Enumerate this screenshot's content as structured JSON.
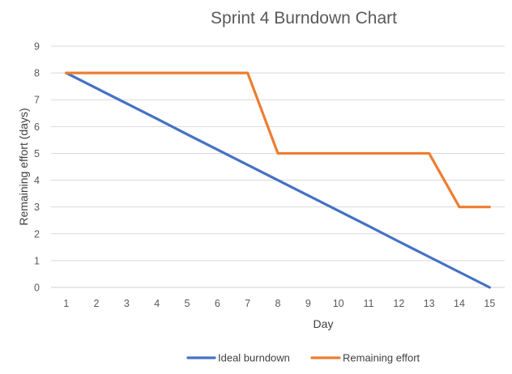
{
  "chart_data": {
    "type": "line",
    "title": "Sprint 4 Burndown Chart",
    "xlabel": "Day",
    "ylabel": "Remaining effort (days)",
    "x": [
      1,
      2,
      3,
      4,
      5,
      6,
      7,
      8,
      9,
      10,
      11,
      12,
      13,
      14,
      15
    ],
    "ylim": [
      0,
      9
    ],
    "yticks": [
      0,
      1,
      2,
      3,
      4,
      5,
      6,
      7,
      8,
      9
    ],
    "grid": true,
    "legend_position": "bottom",
    "series": [
      {
        "name": "Ideal burndown",
        "color": "#4472C4",
        "values": [
          8,
          7.43,
          6.86,
          6.29,
          5.71,
          5.14,
          4.57,
          4,
          3.43,
          2.86,
          2.29,
          1.71,
          1.14,
          0.57,
          0
        ]
      },
      {
        "name": "Remaining effort",
        "color": "#ED7D31",
        "values": [
          8,
          8,
          8,
          8,
          8,
          8,
          8,
          5,
          5,
          5,
          5,
          5,
          5,
          3,
          3
        ]
      }
    ]
  }
}
